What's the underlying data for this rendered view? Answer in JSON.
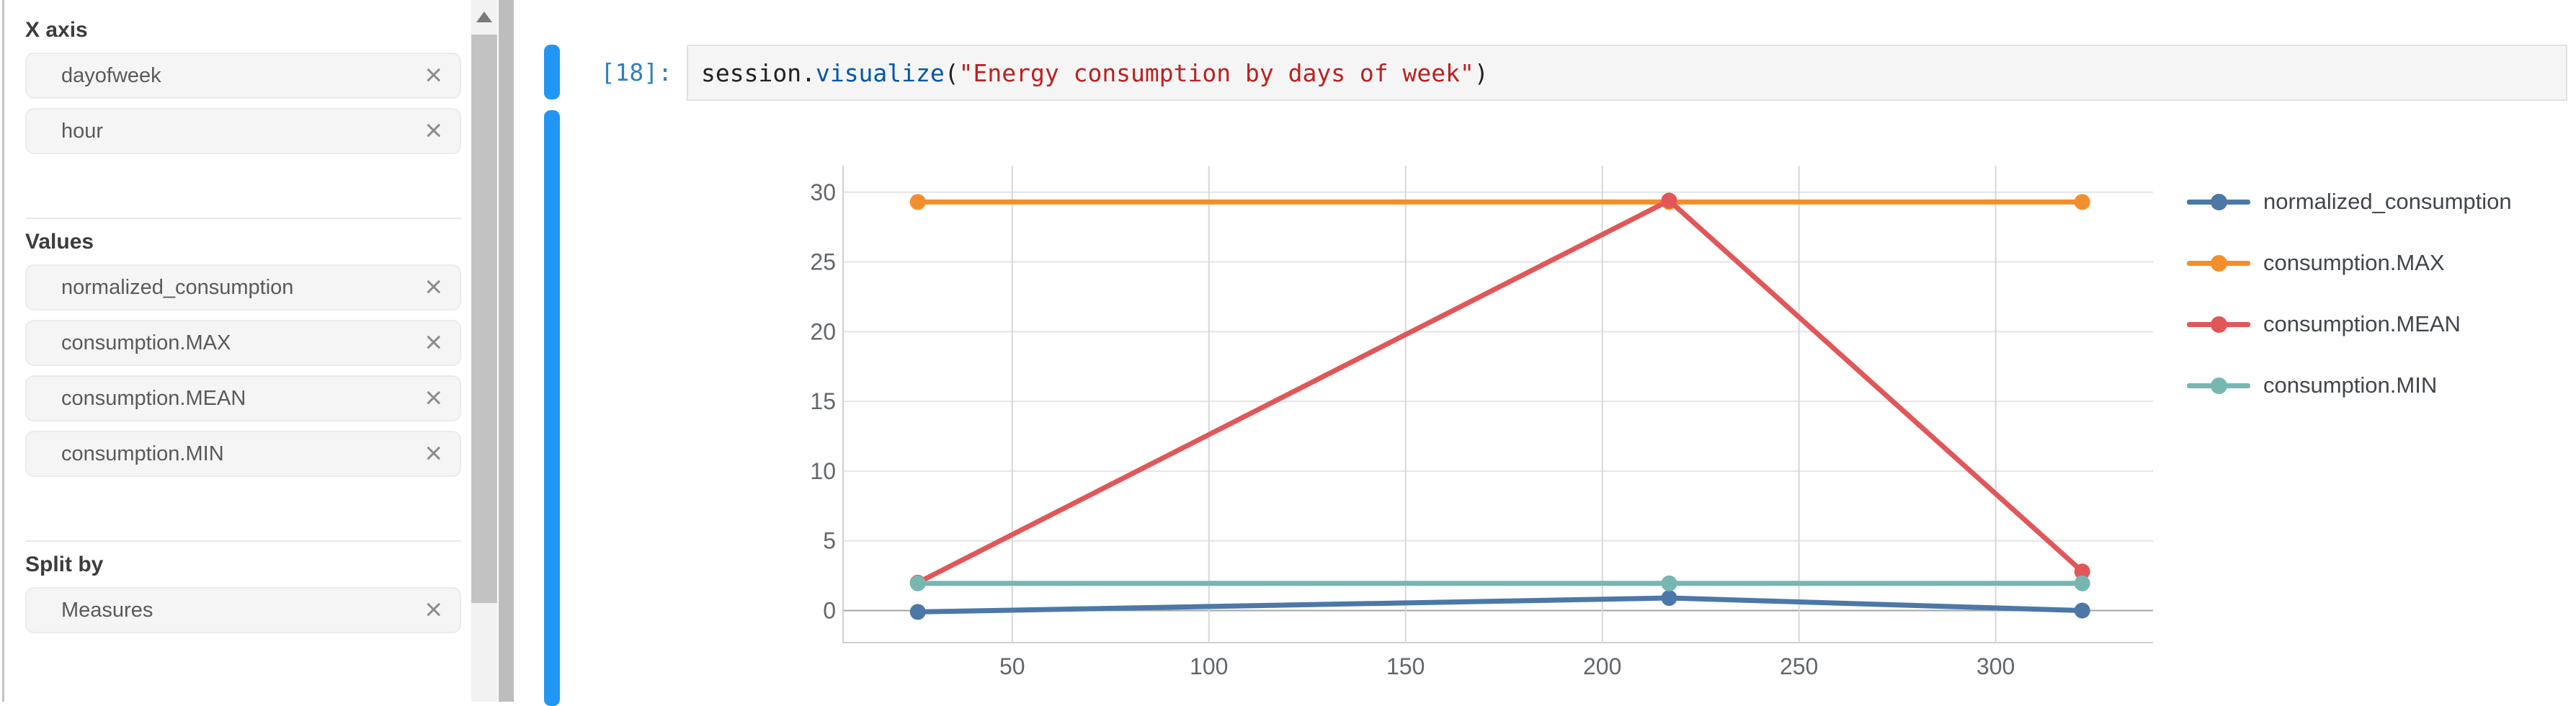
{
  "sidebar": {
    "close_symbol": "×",
    "sections": [
      {
        "label": "X axis",
        "tags": [
          "dayofweek",
          "hour"
        ]
      },
      {
        "label": "Values",
        "tags": [
          "normalized_consumption",
          "consumption.MAX",
          "consumption.MEAN",
          "consumption.MIN"
        ]
      },
      {
        "label": "Split by",
        "tags": [
          "Measures"
        ]
      }
    ]
  },
  "cell": {
    "prompt": "[18]:",
    "tokens": [
      {
        "text": "session.",
        "style": "plain"
      },
      {
        "text": "visualize",
        "style": "function"
      },
      {
        "text": "(",
        "style": "plain"
      },
      {
        "text": "\"Energy consumption by days of week\"",
        "style": "string"
      },
      {
        "text": ")",
        "style": "plain"
      }
    ]
  },
  "chart_data": {
    "type": "line",
    "x": [
      26,
      217,
      322
    ],
    "series": [
      {
        "name": "normalized_consumption",
        "color": "#4c78a8",
        "values": [
          -0.1,
          0.9,
          0
        ]
      },
      {
        "name": "consumption.MAX",
        "color": "#f28e2b",
        "values": [
          29.3,
          29.3,
          29.3
        ]
      },
      {
        "name": "consumption.MEAN",
        "color": "#e15759",
        "values": [
          2.0,
          29.4,
          2.8
        ]
      },
      {
        "name": "consumption.MIN",
        "color": "#76b7b2",
        "values": [
          1.95,
          1.95,
          1.95
        ]
      }
    ],
    "xticks": [
      50,
      100,
      150,
      200,
      250,
      300
    ],
    "yticks": [
      0,
      5,
      10,
      15,
      20,
      25,
      30
    ],
    "xlim": [
      7,
      340
    ],
    "ylim": [
      -2.3,
      31.9
    ],
    "grid": true,
    "legend_position": "right",
    "title": "",
    "xlabel": "",
    "ylabel": ""
  },
  "theme": {
    "accent_blue": "#2196f3",
    "prompt_blue": "#307fc1",
    "grid_color": "#e4e4e4",
    "zero_line_color": "#a5a5a5",
    "axis_color": "#cfcfcf"
  }
}
